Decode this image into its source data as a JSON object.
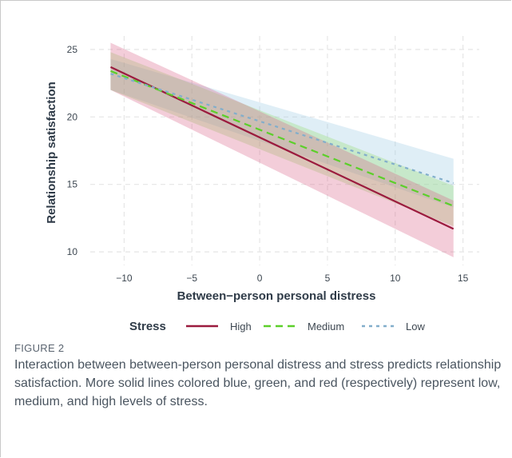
{
  "chart_data": {
    "type": "line",
    "title": "",
    "xlabel": "Between−person personal distress",
    "ylabel": "Relationship satisfaction",
    "xlim": [
      -12.5,
      16.2
    ],
    "ylim": [
      9.0,
      26.0
    ],
    "xticks": [
      -10,
      -5,
      0,
      5,
      10,
      15
    ],
    "xtick_labels": [
      "−10",
      "−5",
      "0",
      "5",
      "10",
      "15"
    ],
    "yticks": [
      10,
      15,
      20,
      25
    ],
    "ytick_labels": [
      "10",
      "15",
      "20",
      "25"
    ],
    "grid": true,
    "legend_title": "Stress",
    "legend_position": "bottom",
    "series": [
      {
        "name": "High",
        "color": "#9b1b3e",
        "dash": "solid",
        "x": [
          -11,
          14.3
        ],
        "y": [
          23.7,
          11.7
        ],
        "ci_low": [
          22.0,
          9.6
        ],
        "ci_high": [
          25.5,
          13.8
        ]
      },
      {
        "name": "Medium",
        "color": "#5ccf2a",
        "dash": "dashed",
        "x": [
          -11,
          14.3
        ],
        "y": [
          23.4,
          13.4
        ],
        "ci_low": [
          22.0,
          11.9
        ],
        "ci_high": [
          24.8,
          14.9
        ]
      },
      {
        "name": "Low",
        "color": "#82aecb",
        "dash": "dotted",
        "x": [
          -11,
          14.3
        ],
        "y": [
          23.2,
          15.1
        ],
        "ci_low": [
          22.0,
          13.3
        ],
        "ci_high": [
          24.3,
          16.9
        ]
      }
    ],
    "band_colors": {
      "High": "rgba(214,88,128,0.30)",
      "Medium": "rgba(150,220,110,0.32)",
      "Low": "rgba(150,200,225,0.30)"
    }
  },
  "caption": {
    "label": "FIGURE 2",
    "text": "Interaction between between-person personal distress and stress predicts relationship satisfaction. More solid lines colored blue, green, and red (respectively) represent low, medium, and high levels of stress."
  }
}
